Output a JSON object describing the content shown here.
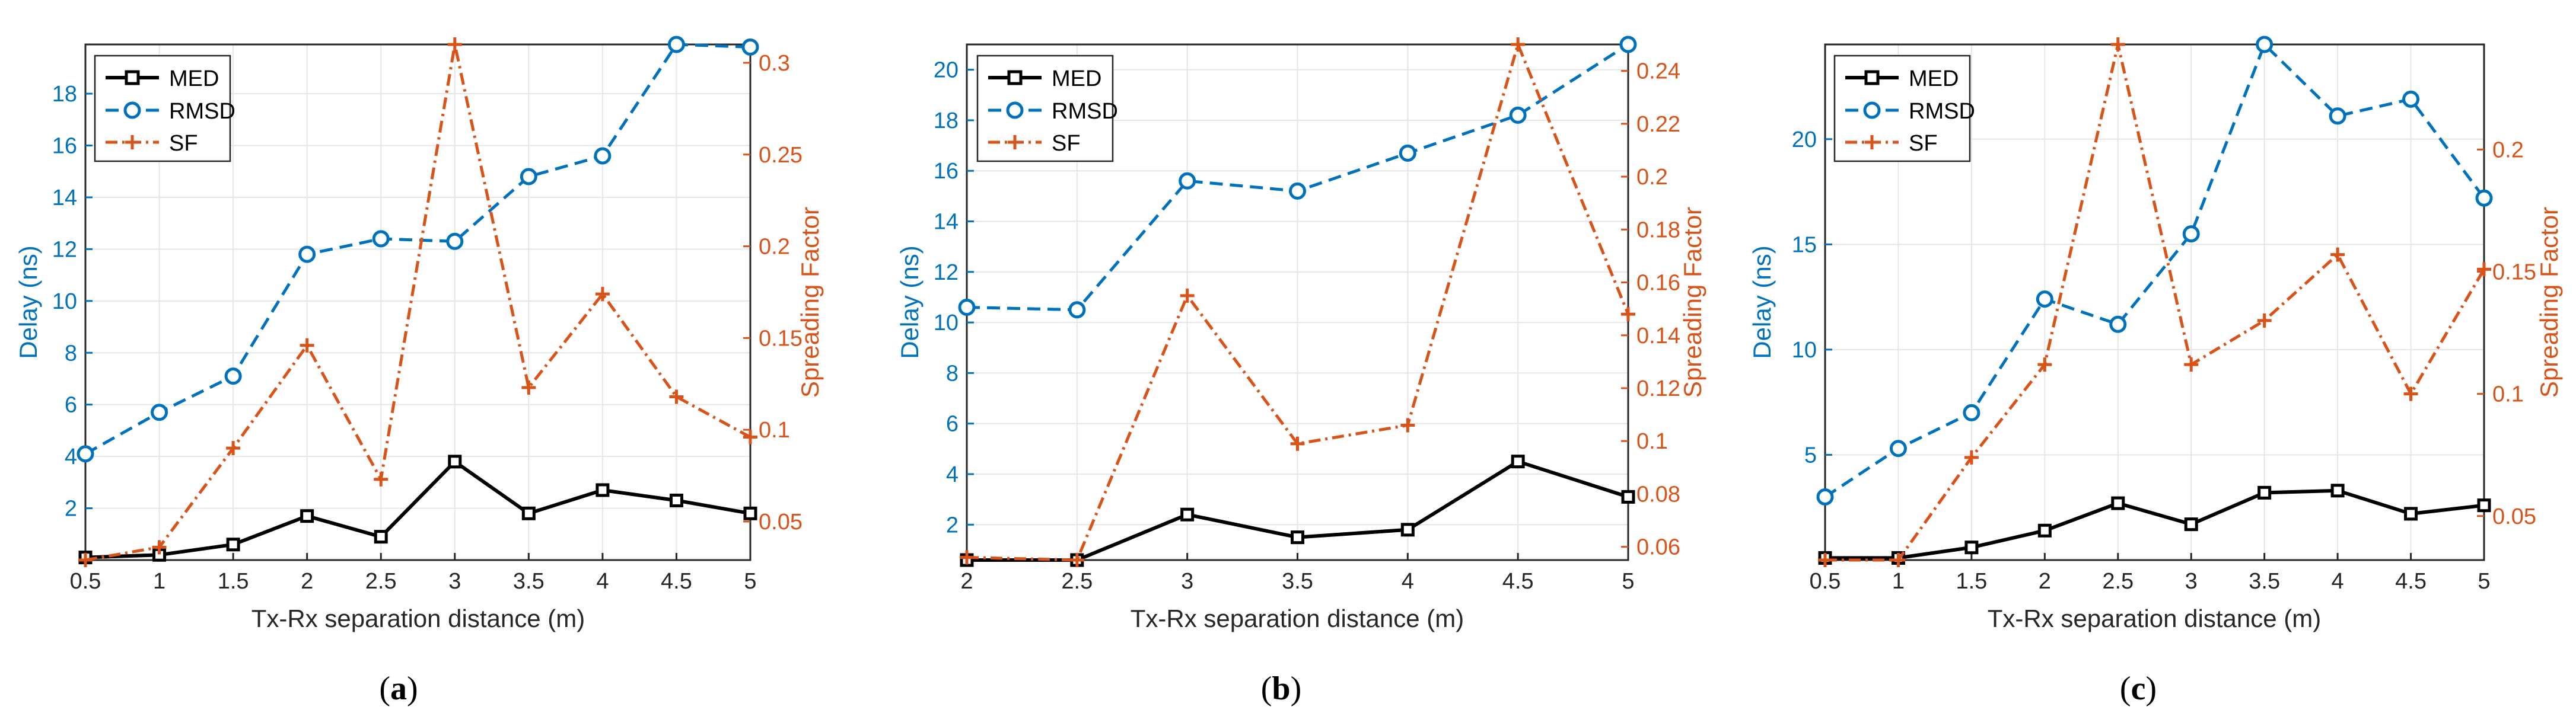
{
  "figure": {
    "panels": [
      {
        "label": "(a)",
        "label_prefix": "(",
        "label_letter": "a",
        "label_suffix": ")"
      },
      {
        "label": "(b)",
        "label_prefix": "(",
        "label_letter": "b",
        "label_suffix": ")"
      },
      {
        "label": "(c)",
        "label_prefix": "(",
        "label_letter": "c",
        "label_suffix": ")"
      }
    ]
  },
  "colors": {
    "med": "#000000",
    "rmsd": "#0072bd",
    "sf": "#d95319",
    "left_axis": "#0072bd",
    "right_axis": "#d95319",
    "grid": "#e6e6e6",
    "frame": "#262626"
  },
  "chart_data": [
    {
      "type": "line",
      "title": "",
      "xlabel": "Tx-Rx separation distance (m)",
      "ylabel": "Delay (ns)",
      "y2label": "Spreading Factor",
      "grid": true,
      "legend_position": "top-left",
      "x": [
        0.5,
        1,
        1.5,
        2,
        2.5,
        3,
        3.5,
        4,
        4.5,
        5
      ],
      "xlim": [
        0.5,
        5
      ],
      "ylim": [
        0,
        19.9
      ],
      "y2lim": [
        0.029,
        0.31
      ],
      "xticks": [
        0.5,
        1,
        1.5,
        2,
        2.5,
        3,
        3.5,
        4,
        4.5,
        5
      ],
      "xtick_labels": [
        "0.5",
        "1",
        "1.5",
        "2",
        "2.5",
        "3",
        "3.5",
        "4",
        "4.5",
        "5"
      ],
      "yticks": [
        2,
        4,
        6,
        8,
        10,
        12,
        14,
        16,
        18
      ],
      "ytick_labels": [
        "2",
        "4",
        "6",
        "8",
        "10",
        "12",
        "14",
        "16",
        "18"
      ],
      "y2ticks": [
        0.05,
        0.1,
        0.15,
        0.2,
        0.25,
        0.3
      ],
      "y2tick_labels": [
        "0.05",
        "0.1",
        "0.15",
        "0.2",
        "0.25",
        "0.3"
      ],
      "series": [
        {
          "name": "MED",
          "axis": "left",
          "values": [
            0.1,
            0.2,
            0.6,
            1.7,
            0.9,
            3.8,
            1.8,
            2.7,
            2.3,
            1.8
          ]
        },
        {
          "name": "RMSD",
          "axis": "left",
          "values": [
            4.1,
            5.7,
            7.1,
            11.8,
            12.4,
            12.3,
            14.8,
            15.6,
            19.9,
            19.8
          ]
        },
        {
          "name": "SF",
          "axis": "right",
          "values": [
            0.029,
            0.036,
            0.09,
            0.146,
            0.073,
            0.31,
            0.123,
            0.174,
            0.118,
            0.096
          ]
        }
      ]
    },
    {
      "type": "line",
      "title": "",
      "xlabel": "Tx-Rx separation distance (m)",
      "ylabel": "Delay (ns)",
      "y2label": "Spreading Factor",
      "grid": true,
      "legend_position": "top-left",
      "x": [
        2,
        2.5,
        3,
        3.5,
        4,
        4.5,
        5
      ],
      "xlim": [
        2,
        5
      ],
      "ylim": [
        0.6,
        21
      ],
      "y2lim": [
        0.055,
        0.25
      ],
      "xticks": [
        2,
        2.5,
        3,
        3.5,
        4,
        4.5,
        5
      ],
      "xtick_labels": [
        "2",
        "2.5",
        "3",
        "3.5",
        "4",
        "4.5",
        "5"
      ],
      "yticks": [
        2,
        4,
        6,
        8,
        10,
        12,
        14,
        16,
        18,
        20
      ],
      "ytick_labels": [
        "2",
        "4",
        "6",
        "8",
        "10",
        "12",
        "14",
        "16",
        "18",
        "20"
      ],
      "y2ticks": [
        0.06,
        0.08,
        0.1,
        0.12,
        0.14,
        0.16,
        0.18,
        0.2,
        0.22,
        0.24
      ],
      "y2tick_labels": [
        "0.06",
        "0.08",
        "0.1",
        "0.12",
        "0.14",
        "0.16",
        "0.18",
        "0.2",
        "0.22",
        "0.24"
      ],
      "series": [
        {
          "name": "MED",
          "axis": "left",
          "values": [
            0.6,
            0.6,
            2.4,
            1.5,
            1.8,
            4.5,
            3.1
          ]
        },
        {
          "name": "RMSD",
          "axis": "left",
          "values": [
            10.6,
            10.5,
            15.6,
            15.2,
            16.7,
            18.2,
            21
          ]
        },
        {
          "name": "SF",
          "axis": "right",
          "values": [
            0.056,
            0.055,
            0.155,
            0.099,
            0.106,
            0.25,
            0.148
          ]
        }
      ]
    },
    {
      "type": "line",
      "title": "",
      "xlabel": "Tx-Rx separation distance (m)",
      "ylabel": "Delay (ns)",
      "y2label": "Spreading Factor",
      "grid": true,
      "legend_position": "top-left",
      "x": [
        0.5,
        1,
        1.5,
        2,
        2.5,
        3,
        3.5,
        4,
        4.5,
        5
      ],
      "xlim": [
        0.5,
        5
      ],
      "ylim": [
        0,
        24.5
      ],
      "y2lim": [
        0.032,
        0.243
      ],
      "xticks": [
        0.5,
        1,
        1.5,
        2,
        2.5,
        3,
        3.5,
        4,
        4.5,
        5
      ],
      "xtick_labels": [
        "0.5",
        "1",
        "1.5",
        "2",
        "2.5",
        "3",
        "3.5",
        "4",
        "4.5",
        "5"
      ],
      "yticks": [
        5,
        10,
        15,
        20
      ],
      "ytick_labels": [
        "5",
        "10",
        "15",
        "20"
      ],
      "y2ticks": [
        0.05,
        0.1,
        0.15,
        0.2
      ],
      "y2tick_labels": [
        "0.05",
        "0.1",
        "0.15",
        "0.2"
      ],
      "series": [
        {
          "name": "MED",
          "axis": "left",
          "values": [
            0.1,
            0.1,
            0.6,
            1.4,
            2.7,
            1.7,
            3.2,
            3.3,
            2.2,
            2.6
          ]
        },
        {
          "name": "RMSD",
          "axis": "left",
          "values": [
            3,
            5.3,
            7,
            12.4,
            11.2,
            15.5,
            24.5,
            21.1,
            21.9,
            17.2
          ]
        },
        {
          "name": "SF",
          "axis": "right",
          "values": [
            0.032,
            0.032,
            0.074,
            0.112,
            0.243,
            0.112,
            0.13,
            0.157,
            0.1,
            0.151
          ]
        }
      ]
    }
  ]
}
